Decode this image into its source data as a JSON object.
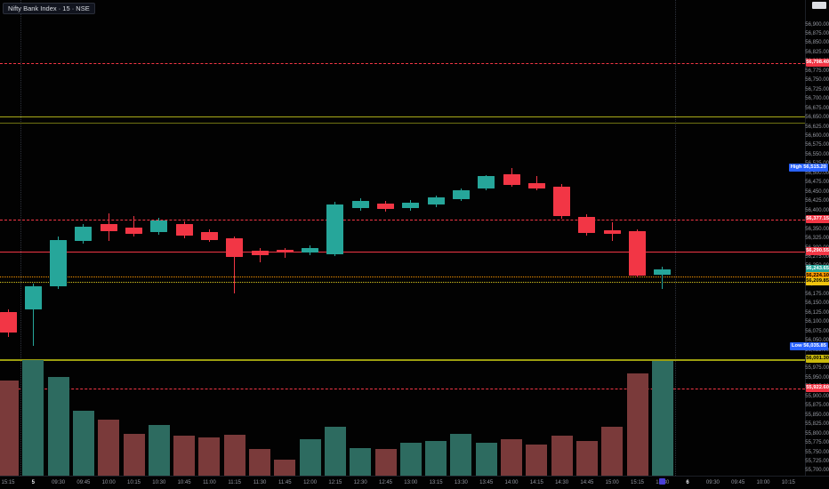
{
  "header": {
    "title": "Nifty Bank Index · 15 · NSE",
    "symbol": "Nifty Bank Index",
    "interval": "15",
    "exchange": "NSE"
  },
  "colors": {
    "background": "#020202",
    "up": "#26a69a",
    "down": "#f23645",
    "vol_up": "#2d6b60",
    "vol_down": "#7a3a3a",
    "axis_text": "#9598a1",
    "marker_text": "#eceef2",
    "high_low_badge": "#2962ff",
    "session_separator": "#2e323c"
  },
  "chart_data": {
    "type": "candlestick",
    "title": "Nifty Bank Index · 15 · NSE",
    "grid": false,
    "legend_position": "top-left",
    "y_axis": {
      "range": [
        55688,
        56967
      ],
      "ticks": [
        56900,
        56875,
        56850,
        56825,
        56800,
        56775,
        56750,
        56725,
        56700,
        56675,
        56650,
        56625,
        56600,
        56575,
        56550,
        56525,
        56500,
        56475,
        56450,
        56425,
        56400,
        56375,
        56350,
        56325,
        56300,
        56275,
        56250,
        56225,
        56200,
        56175,
        56150,
        56125,
        56100,
        56075,
        56050,
        56025,
        56000,
        55975,
        55950,
        55925,
        55900,
        55875,
        55850,
        55825,
        55800,
        55775,
        55750,
        55725,
        55700
      ],
      "label_format": "#,##0.00"
    },
    "candle_format": [
      "time",
      "open",
      "high",
      "low",
      "close"
    ],
    "candles": [
      [
        "15:15",
        56127,
        56135,
        56060,
        56072
      ],
      [
        "09:15",
        56136,
        56205,
        56035.85,
        56198
      ],
      [
        "09:30",
        56198,
        56330,
        56190,
        56322
      ],
      [
        "09:45",
        56318,
        56365,
        56312,
        56358
      ],
      [
        "10:00",
        56365,
        56394,
        56318,
        56346
      ],
      [
        "10:15",
        56354,
        56387,
        56330,
        56339
      ],
      [
        "10:30",
        56342,
        56382,
        56336,
        56375
      ],
      [
        "10:45",
        56365,
        56372,
        56327,
        56334
      ],
      [
        "11:00",
        56342,
        56350,
        56317,
        56322
      ],
      [
        "11:15",
        56327,
        56332,
        56179,
        56277
      ],
      [
        "11:30",
        56294,
        56299,
        56261,
        56280
      ],
      [
        "11:45",
        56296,
        56301,
        56273,
        56289
      ],
      [
        "12:00",
        56289,
        56307,
        56282,
        56301
      ],
      [
        "12:15",
        56284,
        56424,
        56278,
        56418
      ],
      [
        "12:30",
        56408,
        56434,
        56401,
        56427
      ],
      [
        "12:45",
        56420,
        56427,
        56399,
        56406
      ],
      [
        "13:00",
        56408,
        56429,
        56401,
        56423
      ],
      [
        "13:15",
        56418,
        56442,
        56411,
        56437
      ],
      [
        "13:30",
        56432,
        56461,
        56427,
        56456
      ],
      [
        "13:45",
        56461,
        56497,
        56456,
        56494
      ],
      [
        "14:00",
        56499,
        56515.2,
        56465,
        56470
      ],
      [
        "14:15",
        56475,
        56494,
        56456,
        56461
      ],
      [
        "14:30",
        56466,
        56473,
        56380,
        56385
      ],
      [
        "14:45",
        56384,
        56391,
        56334,
        56341
      ],
      [
        "15:00",
        56349,
        56370,
        56318,
        56339
      ],
      [
        "15:15",
        56346,
        56350,
        56220,
        56227
      ],
      [
        "15:30",
        56229,
        56249,
        56191,
        56243.65
      ]
    ],
    "volume_units": "relative",
    "volume": [
      107,
      130,
      111,
      73,
      63,
      47,
      57,
      45,
      43,
      46,
      30,
      18,
      41,
      55,
      31,
      30,
      37,
      39,
      47,
      37,
      41,
      35,
      45,
      39,
      55,
      115,
      129
    ],
    "levels": [
      {
        "price": 56798.4,
        "color": "#f23645",
        "style": "dashed",
        "thick": false
      },
      {
        "price": 56652.7,
        "color": "#a8ab1a",
        "style": "solid",
        "thick": false
      },
      {
        "price": 56637.95,
        "color": "#6f7212",
        "style": "solid",
        "thick": false
      },
      {
        "price": 56377.15,
        "color": "#f23645",
        "style": "dashed",
        "thick": false
      },
      {
        "price": 56290.55,
        "color": "#f23645",
        "style": "solid",
        "thick": false
      },
      {
        "price": 56224.1,
        "color": "#ff9800",
        "style": "dotted",
        "thick": false
      },
      {
        "price": 56209.85,
        "color": "#d9c81e",
        "style": "dotted",
        "thick": false
      },
      {
        "price": 56001.3,
        "color": "#9c9e0f",
        "style": "solid",
        "thick": true
      },
      {
        "price": 55922.6,
        "color": "#f23645",
        "style": "dashed",
        "thick": false
      }
    ],
    "side_badges": [
      {
        "price": 56798.4,
        "bg": "#f23645",
        "fg": "#ffffff"
      },
      {
        "price": 56377.15,
        "bg": "#f23645",
        "fg": "#ffffff"
      },
      {
        "price": 56290.55,
        "bg": "#f23645",
        "fg": "#ffffff"
      },
      {
        "price": 56243.65,
        "bg": "#26a69a",
        "fg": "#ffffff"
      },
      {
        "price": 56224.1,
        "bg": "#ff9800",
        "fg": "#000000"
      },
      {
        "price": 56209.85,
        "bg": "#f0c40f",
        "fg": "#000000"
      },
      {
        "price": 56001.3,
        "bg": "#c9b90c",
        "fg": "#000000"
      },
      {
        "price": 55922.6,
        "bg": "#f23645",
        "fg": "#ffffff"
      }
    ],
    "range_badges": [
      {
        "label": "High",
        "price": 56515.2
      },
      {
        "label": "Low",
        "price": 56035.85
      }
    ],
    "x_ticks": [
      {
        "label": "15:15"
      },
      {
        "label": "5",
        "marker": true
      },
      {
        "label": "09:30"
      },
      {
        "label": "09:45"
      },
      {
        "label": "10:00"
      },
      {
        "label": "10:15"
      },
      {
        "label": "10:30"
      },
      {
        "label": "10:45"
      },
      {
        "label": "11:00"
      },
      {
        "label": "11:15"
      },
      {
        "label": "11:30"
      },
      {
        "label": "11:45"
      },
      {
        "label": "12:00"
      },
      {
        "label": "12:15"
      },
      {
        "label": "12:30"
      },
      {
        "label": "12:45"
      },
      {
        "label": "13:00"
      },
      {
        "label": "13:15"
      },
      {
        "label": "13:30"
      },
      {
        "label": "13:45"
      },
      {
        "label": "14:00"
      },
      {
        "label": "14:15"
      },
      {
        "label": "14:30"
      },
      {
        "label": "14:45"
      },
      {
        "label": "15:00"
      },
      {
        "label": "15:15"
      },
      {
        "label": "15:30"
      },
      {
        "label": "6",
        "marker": true
      },
      {
        "label": "09:30"
      },
      {
        "label": "09:45"
      },
      {
        "label": "10:00"
      },
      {
        "label": "10:15"
      }
    ],
    "session_separators": [
      23,
      759
    ]
  }
}
